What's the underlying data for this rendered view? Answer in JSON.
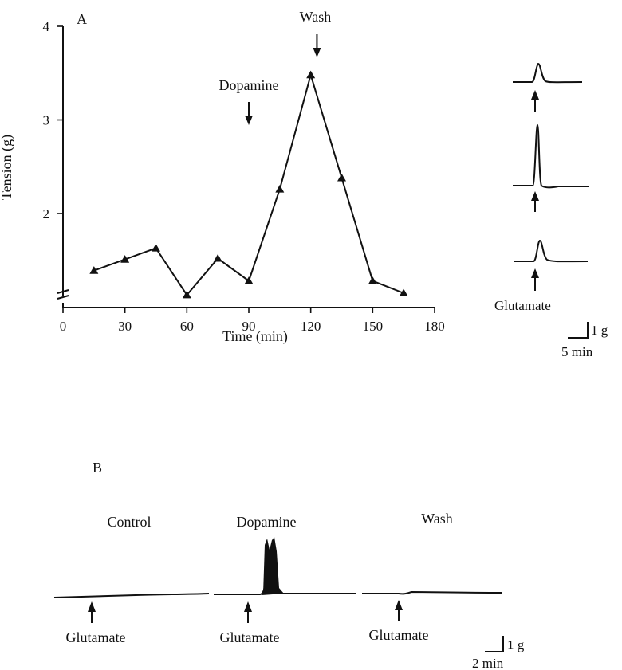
{
  "panels": {
    "a_label": "A",
    "b_label": "B"
  },
  "chart_data": {
    "type": "line",
    "xlabel": "Time (min)",
    "ylabel": "Tension (g)",
    "xlim": [
      0,
      180
    ],
    "ylim": [
      1.0,
      4.0
    ],
    "x_ticks": [
      0,
      30,
      60,
      90,
      120,
      150,
      180
    ],
    "y_ticks": [
      2,
      3,
      4
    ],
    "series": [
      {
        "x": [
          15,
          30,
          45,
          60,
          75,
          90,
          105,
          120,
          135,
          150,
          165
        ],
        "y": [
          1.39,
          1.51,
          1.63,
          1.13,
          1.52,
          1.28,
          2.26,
          3.48,
          2.38,
          1.28,
          1.15
        ],
        "marker": "triangle",
        "color": "#111111"
      }
    ],
    "annotations": [
      {
        "text": "Dopamine",
        "x": 90,
        "arrow": "down"
      },
      {
        "text": "Wash",
        "x": 123,
        "arrow": "down"
      }
    ],
    "grid": false
  },
  "inset_traces": {
    "stimulus_label": "Glutamate",
    "scale_force": "1 g",
    "scale_time": "5 min"
  },
  "panel_b": {
    "conditions": [
      "Control",
      "Dopamine",
      "Wash"
    ],
    "stimulus_label": "Glutamate",
    "scale_force": "1 g",
    "scale_time": "2 min"
  }
}
